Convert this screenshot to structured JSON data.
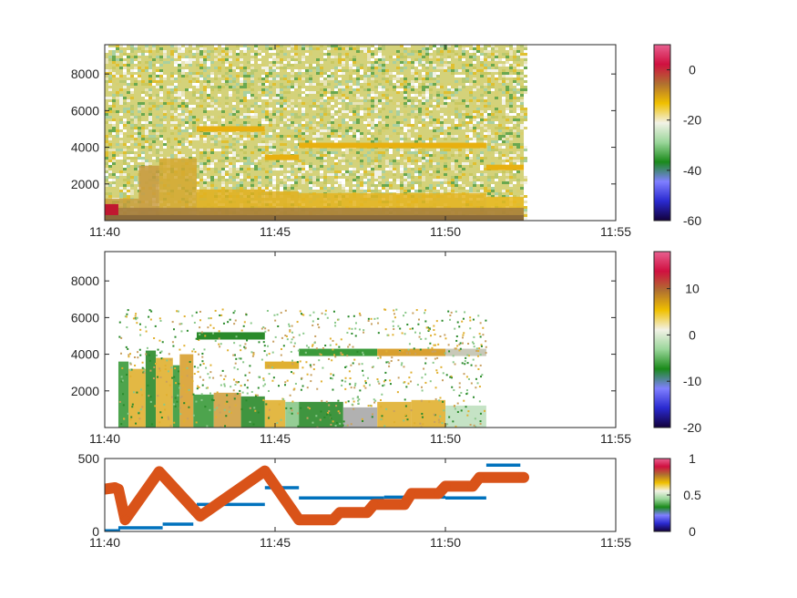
{
  "figure": {
    "background": "#ffffff"
  },
  "colorbar_stops": [
    "#12003a",
    "#2a2ad0",
    "#8080ff",
    "#1a8a1a",
    "#9ad69a",
    "#f2f2e6",
    "#f0c000",
    "#b07030",
    "#d01040",
    "#e86090"
  ],
  "chart_data": [
    {
      "type": "heatmap",
      "title": "",
      "xlabel": "",
      "ylabel": "",
      "x_ticks": [
        "11:40",
        "11:45",
        "11:50",
        "11:55"
      ],
      "x_range_minutes": [
        0,
        15
      ],
      "y_ticks": [
        2000,
        4000,
        6000,
        8000
      ],
      "ylim": [
        0,
        9600
      ],
      "data_x_extent_minutes": [
        0,
        12.3
      ],
      "colorbar": {
        "ticks": [
          0,
          -20,
          -40,
          -60
        ],
        "range": [
          -60,
          10
        ]
      },
      "features": [
        {
          "label": "layer",
          "start_min": 2.7,
          "end_min": 4.7,
          "height": 5000
        },
        {
          "label": "layer",
          "start_min": 4.7,
          "end_min": 5.7,
          "height": 3450
        },
        {
          "label": "layer",
          "start_min": 5.7,
          "end_min": 11.2,
          "height": 4100
        },
        {
          "label": "layer",
          "start_min": 11.2,
          "end_min": 12.3,
          "height": 2900
        }
      ]
    },
    {
      "type": "heatmap",
      "title": "",
      "xlabel": "",
      "ylabel": "",
      "x_ticks": [
        "11:40",
        "11:45",
        "11:50",
        "11:55"
      ],
      "x_range_minutes": [
        0,
        15
      ],
      "y_ticks": [
        2000,
        4000,
        6000,
        8000
      ],
      "ylim": [
        0,
        9600
      ],
      "data_x_extent_minutes": [
        0.4,
        11.2
      ],
      "colorbar": {
        "ticks": [
          10,
          0,
          -10,
          -20
        ],
        "range": [
          -20,
          18
        ]
      }
    },
    {
      "type": "line",
      "title": "",
      "xlabel": "",
      "ylabel": "",
      "x_ticks": [
        "11:40",
        "11:45",
        "11:50",
        "11:55"
      ],
      "x_range_minutes": [
        0,
        15
      ],
      "y_ticks": [
        0,
        500
      ],
      "ylim": [
        0,
        500
      ],
      "colorbar": {
        "ticks": [
          1,
          0.5,
          0
        ],
        "range": [
          0,
          1
        ]
      },
      "series": [
        {
          "color": "#0072bd",
          "style": "step",
          "segments": [
            {
              "x": [
                0,
                0.4
              ],
              "y": 5
            },
            {
              "x": 0.4,
              "y": 10
            },
            {
              "x": [
                0.4,
                1.7
              ],
              "y": 25
            },
            {
              "x": [
                1.7,
                2.6
              ],
              "y": 50
            },
            {
              "x": [
                2.7,
                4.7
              ],
              "y": 185
            },
            {
              "x": [
                4.7,
                5.7
              ],
              "y": 300
            },
            {
              "x": [
                5.7,
                8.2
              ],
              "y": 230
            },
            {
              "x": [
                8.2,
                10
              ],
              "y": 235
            },
            {
              "x": [
                10,
                11.2
              ],
              "y": 230
            },
            {
              "x": [
                11.2,
                12.2
              ],
              "y": 455
            }
          ]
        },
        {
          "color": "#d95319",
          "style": "marker-line",
          "x": [
            0,
            0.3,
            0.4,
            0.6,
            1.6,
            2.8,
            4.7,
            5.7,
            6.7,
            6.9,
            7.7,
            7.9,
            8.8,
            9.0,
            9.8,
            10.0,
            10.8,
            11.0,
            12.3
          ],
          "y": [
            290,
            300,
            290,
            80,
            410,
            105,
            415,
            80,
            80,
            130,
            130,
            185,
            185,
            260,
            260,
            310,
            310,
            370,
            370
          ]
        }
      ]
    }
  ]
}
